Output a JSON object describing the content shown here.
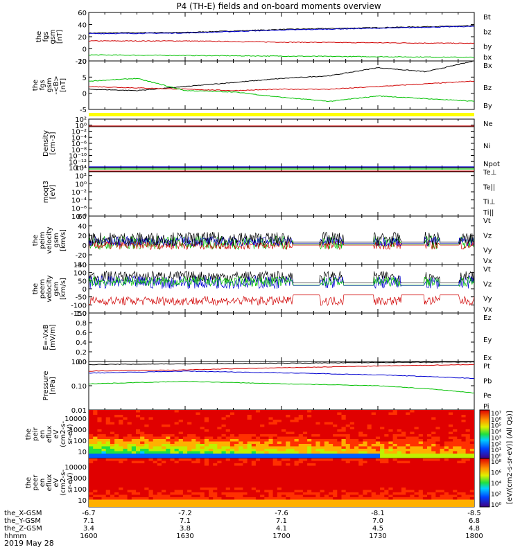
{
  "title": "P4 (TH-E) fields and on-board moments overview",
  "footer_date": "2019 May 28",
  "bottom_axis": {
    "row_labels": [
      "the_X-GSM",
      "the_Y-GSM",
      "the_Z-GSM",
      "hhmm"
    ],
    "columns": [
      [
        "-6.7",
        "7.1",
        "3.4",
        "1600"
      ],
      [
        "-7.2",
        "7.1",
        "3.8",
        "1630"
      ],
      [
        "-7.6",
        "7.1",
        "4.1",
        "1700"
      ],
      [
        "-8.1",
        "7.0",
        "4.5",
        "1730"
      ],
      [
        "-8.5",
        "6.8",
        "4.8",
        "1800"
      ]
    ]
  },
  "spectro_colorbar_label": "[eV/(cm2-s-sr-eV)] (All Qs)]",
  "chart_data": [
    {
      "type": "line",
      "name": "the_fgs_gsm",
      "ylabel": [
        "the",
        "fgs",
        "gsm",
        "[nT]"
      ],
      "ylim": [
        -20,
        60
      ],
      "yticks": [
        "60",
        "40",
        "20",
        "0",
        "-20"
      ],
      "x": [
        1600,
        1630,
        1700,
        1730,
        1800
      ],
      "series": [
        {
          "name": "Bt",
          "color": "#000000",
          "values": [
            26,
            27,
            32,
            35,
            38
          ]
        },
        {
          "name": "bz",
          "color": "#d00000",
          "values": [
            13,
            13,
            11,
            10,
            9
          ]
        },
        {
          "name": "by",
          "color": "#00c000",
          "values": [
            -10,
            -11,
            -12,
            -13,
            -14
          ]
        },
        {
          "name": "bx",
          "color": "#0000d0",
          "values": [
            25,
            26,
            31,
            34,
            37
          ]
        }
      ]
    },
    {
      "type": "line",
      "name": "the_fgs_gsm_b",
      "ylabel": [
        "the",
        "fgs",
        "gsm",
        "-<B>",
        "[nT]"
      ],
      "ylim": [
        -8,
        10
      ],
      "yticks": [
        "10",
        "5",
        "0",
        "-5"
      ],
      "x": [
        1600,
        1615,
        1630,
        1645,
        1700,
        1715,
        1730,
        1745,
        1800
      ],
      "series": [
        {
          "name": "Bx",
          "color": "#000000",
          "values": [
            -0.5,
            -1,
            0.5,
            2,
            3.5,
            4.5,
            7.5,
            6,
            10
          ]
        },
        {
          "name": "Bz",
          "color": "#d00000",
          "values": [
            0.5,
            0,
            -0.5,
            -1,
            -0.5,
            -0.5,
            0.5,
            1.5,
            2.5
          ]
        },
        {
          "name": "By",
          "color": "#00c000",
          "values": [
            2.5,
            3.5,
            -1,
            -1.5,
            -3.5,
            -5,
            -3,
            -4,
            -5
          ]
        }
      ]
    },
    {
      "type": "line",
      "name": "density",
      "ylabel": [
        "Density",
        "[cm-3]"
      ],
      "scale": "log",
      "yticks": [
        "10²",
        "10⁰",
        "10⁻²",
        "10⁻⁴",
        "10⁻⁶",
        "10⁻⁸",
        "10⁻¹⁰",
        "10⁻¹²",
        "10⁻¹⁴"
      ],
      "series": [
        {
          "name": "Ne",
          "color": "#d00000"
        },
        {
          "name": "Ni",
          "color": "#000000"
        },
        {
          "name": "Npot",
          "color": "#0000d0"
        }
      ]
    },
    {
      "type": "line",
      "name": "temperature",
      "ylabel": [
        "moqt3",
        "[eV]"
      ],
      "scale": "log",
      "yticks": [
        "10⁴",
        "10²",
        "10⁰",
        "10⁻²",
        "10⁻⁴",
        "10⁻⁶",
        "10⁻⁸"
      ],
      "series": [
        {
          "name": "Te⊥",
          "color": "#d00000"
        },
        {
          "name": "Te||",
          "color": "#000000"
        },
        {
          "name": "Ti⊥",
          "color": "#0000d0"
        },
        {
          "name": "Ti||",
          "color": "#00c000"
        }
      ]
    },
    {
      "type": "line",
      "name": "peim_velocity",
      "ylabel": [
        "the",
        "peim",
        "velocity",
        "gsm",
        "[km/s]"
      ],
      "ylim": [
        -40,
        60
      ],
      "yticks": [
        "60",
        "40",
        "20",
        "0",
        "-20",
        "-40"
      ],
      "series": [
        {
          "name": "Vt",
          "color": "#000000"
        },
        {
          "name": "Vz",
          "color": "#d00000"
        },
        {
          "name": "Vy",
          "color": "#00c000"
        },
        {
          "name": "Vx",
          "color": "#0000d0"
        }
      ]
    },
    {
      "type": "line",
      "name": "peem_velocity",
      "ylabel": [
        "the",
        "peem",
        "velocity",
        "gsm",
        "[km/s]"
      ],
      "ylim": [
        -150,
        150
      ],
      "yticks": [
        "150",
        "100",
        "50",
        "0",
        "-50",
        "-100",
        "-150"
      ],
      "series": [
        {
          "name": "Vt",
          "color": "#000000"
        },
        {
          "name": "Vz",
          "color": "#d00000"
        },
        {
          "name": "Vy",
          "color": "#00c000"
        },
        {
          "name": "Vx",
          "color": "#0000d0"
        }
      ]
    },
    {
      "type": "line",
      "name": "e_field",
      "ylabel": [
        "E=-VxB",
        "[mV/m]"
      ],
      "ylim": [
        0,
        1
      ],
      "yticks": [
        "1.0",
        "0.8",
        "0.6",
        "0.4",
        "0.2",
        "0.0"
      ],
      "series": [
        {
          "name": "Ez",
          "color": "#d00000"
        },
        {
          "name": "Ey",
          "color": "#00c000"
        },
        {
          "name": "Ex",
          "color": "#0000d0"
        }
      ]
    },
    {
      "type": "line",
      "name": "pressure",
      "ylabel": [
        "Pressure",
        "[nPa]"
      ],
      "scale": "log",
      "yticks": [
        "1.00",
        "0.10",
        "0.01"
      ],
      "series": [
        {
          "name": "Pt",
          "color": "#000000"
        },
        {
          "name": "Pb",
          "color": "#d00000"
        },
        {
          "name": "Pe",
          "color": "#00c000"
        },
        {
          "name": "Pi",
          "color": "#0000d0"
        }
      ]
    },
    {
      "type": "heatmap",
      "name": "peir_eflux",
      "ylabel": [
        "the",
        "peir",
        "en",
        "eflux",
        "eV",
        "(cm2-s-",
        "sr-eV)"
      ],
      "yticks": [
        "10000",
        "1000",
        "100",
        "10"
      ],
      "colorbar_ticks": [
        "10⁷",
        "10⁶",
        "10⁵",
        "10⁴",
        "10³",
        "10²",
        "10¹",
        "10⁰"
      ]
    },
    {
      "type": "heatmap",
      "name": "peer_eflux",
      "ylabel": [
        "the",
        "peer",
        "en",
        "eflux",
        "eV",
        "(cm2-s-",
        "sr-eV)"
      ],
      "yticks": [
        "10000",
        "1000",
        "100",
        "10"
      ],
      "colorbar_ticks": [
        "10⁸",
        "10⁶",
        "10⁴",
        "10²",
        "10⁰"
      ]
    }
  ]
}
